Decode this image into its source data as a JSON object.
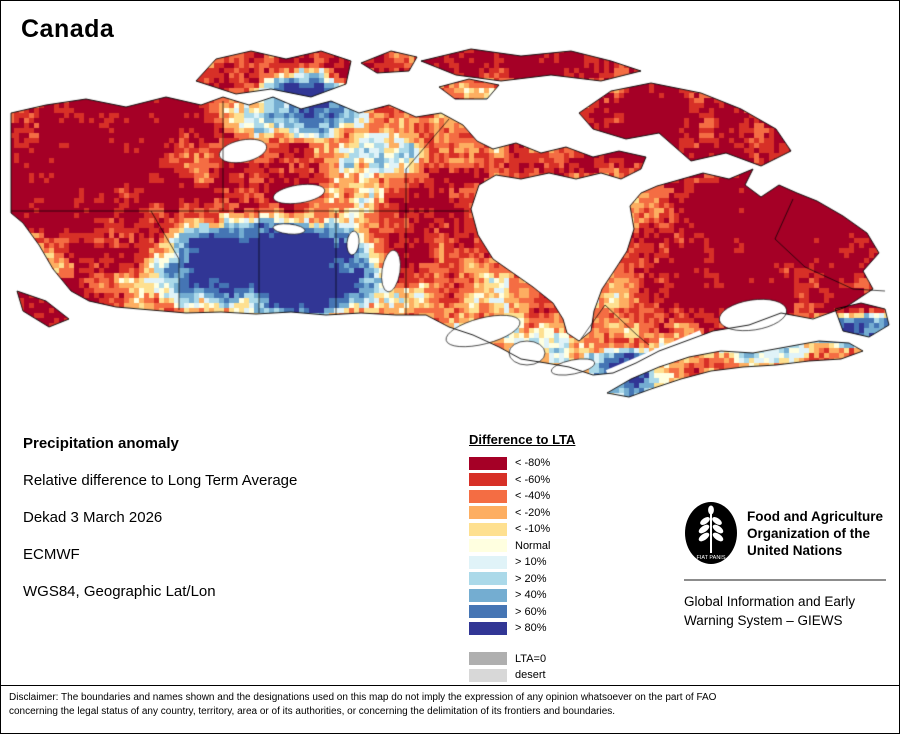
{
  "title": "Canada",
  "info": {
    "heading": "Precipitation anomaly",
    "line1": "Relative difference to Long Term Average",
    "line2": "Dekad 3 March 2026",
    "line3": "ECMWF",
    "line4": "WGS84, Geographic Lat/Lon"
  },
  "legend": {
    "title": "Difference to LTA",
    "items": [
      {
        "label": "< -80%",
        "color": "#A50026"
      },
      {
        "label": "< -60%",
        "color": "#D73027"
      },
      {
        "label": "< -40%",
        "color": "#F46D43"
      },
      {
        "label": "< -20%",
        "color": "#FDAE61"
      },
      {
        "label": "< -10%",
        "color": "#FEE090"
      },
      {
        "label": "Normal",
        "color": "#FFFFE0"
      },
      {
        "label": "> 10%",
        "color": "#E0F3F8"
      },
      {
        "label": "> 20%",
        "color": "#ABD9E9"
      },
      {
        "label": "> 40%",
        "color": "#74ADD1"
      },
      {
        "label": "> 60%",
        "color": "#4575B4"
      },
      {
        "label": "> 80%",
        "color": "#313695"
      }
    ],
    "extra": [
      {
        "label": "LTA=0",
        "color": "#AFAFAF"
      },
      {
        "label": "desert",
        "color": "#D8D8D8"
      }
    ]
  },
  "branding": {
    "logo_motto": "FIAT PANIS",
    "org_lines": [
      "Food and Agriculture",
      "Organization of the",
      "United Nations"
    ],
    "giews_lines": [
      "Global Information and Early",
      "Warning System – GIEWS"
    ]
  },
  "disclaimer_lines": [
    "Disclaimer: The boundaries and names shown and the designations used on this map do not imply the expression of any opinion whatsoever on the part of FAO",
    "concerning the legal status of any country, territory, area or of its authorities, or concerning the delimitation of its frontiers and boundaries."
  ],
  "map": {
    "description": "Raster map of Canada showing dekadal precipitation anomaly (relative difference to long term average); reds indicate below-average precipitation, blues above-average."
  }
}
